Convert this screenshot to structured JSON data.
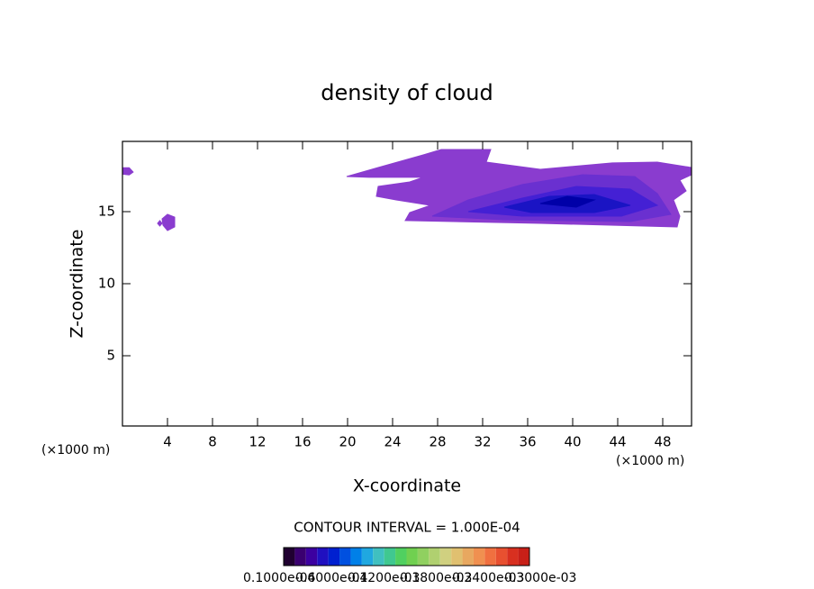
{
  "chart_data": {
    "type": "contour",
    "title": "density of cloud",
    "x_label": "X-coordinate",
    "y_label": "Z-coordinate",
    "x_unit": "(×1000 m)",
    "y_unit": "(×1000 m)",
    "contour_interval": "CONTOUR INTERVAL = 1.000E-04",
    "xlim": [
      0,
      50.56
    ],
    "ylim": [
      0.125,
      19.875
    ],
    "xticks": [
      4,
      8,
      12,
      16,
      20,
      24,
      28,
      32,
      36,
      40,
      44,
      48
    ],
    "yticks": [
      5,
      10,
      15
    ],
    "regions": [
      {
        "color": "#8a3ccf",
        "x": [
          0,
          0.6,
          0.95,
          0.6,
          0
        ],
        "z": [
          17.6,
          17.55,
          17.75,
          18.05,
          18.05
        ]
      },
      {
        "color": "#8a3ccf",
        "x": [
          3.52,
          4.0,
          4.64,
          4.64,
          4.0,
          3.6
        ],
        "z": [
          14.5,
          14.81,
          14.62,
          13.94,
          13.69,
          14.06
        ]
      },
      {
        "color": "#8a3ccf",
        "x": [
          3.12,
          3.32,
          3.52,
          3.32
        ],
        "z": [
          14.19,
          14.0,
          14.19,
          14.38
        ]
      },
      {
        "color": "#8a3ccf",
        "x": [
          19.92,
          22.72,
          26.72,
          28.32,
          32.72,
          32.32,
          37.12,
          43.52,
          47.52,
          50.56,
          50.56,
          49.52,
          50.08,
          48.96,
          49.52,
          49.28,
          37.12,
          25.12,
          25.52,
          27.36,
          24.32,
          22.56,
          22.72,
          25.52,
          26.72,
          21.92
        ],
        "z": [
          17.44,
          18.06,
          18.94,
          19.31,
          19.31,
          18.44,
          17.94,
          18.38,
          18.44,
          18.06,
          17.56,
          17.19,
          16.44,
          15.81,
          14.69,
          13.94,
          14.19,
          14.38,
          14.94,
          15.44,
          15.81,
          16.06,
          16.75,
          17.06,
          17.38,
          17.38
        ]
      },
      {
        "color": "#6a30d0",
        "x": [
          27.52,
          30.72,
          35.52,
          40.88,
          45.52,
          47.52,
          48.72,
          45.12,
          33.92
        ],
        "z": [
          14.69,
          15.81,
          16.88,
          17.56,
          17.44,
          16.25,
          14.81,
          14.31,
          14.44
        ]
      },
      {
        "color": "#4420d4",
        "x": [
          30.72,
          35.52,
          40.32,
          45.12,
          47.52,
          44.32,
          35.52
        ],
        "z": [
          15.0,
          15.94,
          16.75,
          16.56,
          15.44,
          14.69,
          14.69
        ]
      },
      {
        "color": "#1a14c4",
        "x": [
          33.92,
          37.92,
          41.92,
          45.12,
          41.92,
          36.32
        ],
        "z": [
          15.31,
          16.06,
          16.19,
          15.44,
          14.94,
          14.94
        ]
      },
      {
        "color": "#0000a8",
        "x": [
          37.12,
          39.52,
          41.92,
          40.32
        ],
        "z": [
          15.56,
          16.06,
          15.81,
          15.31
        ]
      }
    ],
    "colorbar": {
      "colors": [
        "#200030",
        "#3a0070",
        "#3c00a0",
        "#2010c0",
        "#0020d0",
        "#0050e0",
        "#0080e8",
        "#20a8e0",
        "#40c0c0",
        "#40c890",
        "#50d060",
        "#70d050",
        "#90d060",
        "#b0d070",
        "#d0d080",
        "#e0c070",
        "#e8a860",
        "#f09050",
        "#f07040",
        "#e85030",
        "#d83020",
        "#c82018"
      ],
      "labels": [
        "0.1000e-04",
        "0.6000e-04",
        "0.1200e-03",
        "0.1800e-03",
        "0.2400e-03",
        "0.3000e-03"
      ]
    }
  }
}
